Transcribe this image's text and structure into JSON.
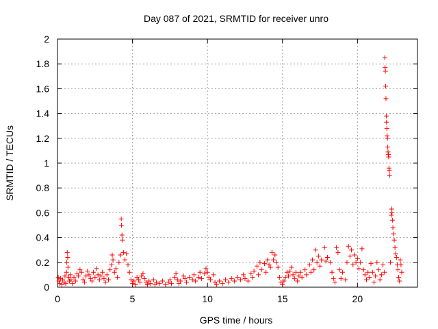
{
  "chart_data": {
    "type": "scatter",
    "title": "Day 087 of 2021, SRMTID for receiver unro",
    "xlabel": "GPS time / hours",
    "ylabel": "SRMTID / TECUs",
    "xlim": [
      0,
      24
    ],
    "ylim": [
      0,
      2
    ],
    "xticks": [
      0,
      5,
      10,
      15,
      20
    ],
    "yticks": [
      0,
      0.2,
      0.4,
      0.6,
      0.8,
      1,
      1.2,
      1.4,
      1.6,
      1.8,
      2
    ],
    "ytick_labels": [
      "0",
      "0.2",
      "0.4",
      "0.6",
      "0.8",
      "1",
      "1.2",
      "1.4",
      "1.6",
      "1.8",
      "2"
    ],
    "grid": true,
    "marker": "+",
    "color": "#ff0000",
    "series": [
      {
        "name": "SRMTID",
        "points": [
          [
            0.05,
            0.08
          ],
          [
            0.1,
            0.05
          ],
          [
            0.15,
            0.03
          ],
          [
            0.2,
            0.07
          ],
          [
            0.3,
            0.02
          ],
          [
            0.35,
            0.06
          ],
          [
            0.45,
            0.04
          ],
          [
            0.5,
            0.09
          ],
          [
            0.55,
            0.03
          ],
          [
            0.6,
            0.12
          ],
          [
            0.62,
            0.2
          ],
          [
            0.65,
            0.28
          ],
          [
            0.68,
            0.24
          ],
          [
            0.7,
            0.16
          ],
          [
            0.75,
            0.08
          ],
          [
            0.8,
            0.05
          ],
          [
            0.85,
            0.1
          ],
          [
            0.9,
            0.06
          ],
          [
            1.0,
            0.03
          ],
          [
            1.1,
            0.08
          ],
          [
            1.2,
            0.05
          ],
          [
            1.3,
            0.11
          ],
          [
            1.4,
            0.09
          ],
          [
            1.5,
            0.14
          ],
          [
            1.6,
            0.12
          ],
          [
            1.7,
            0.06
          ],
          [
            1.8,
            0.04
          ],
          [
            1.9,
            0.09
          ],
          [
            2.0,
            0.13
          ],
          [
            2.1,
            0.1
          ],
          [
            2.2,
            0.07
          ],
          [
            2.3,
            0.05
          ],
          [
            2.4,
            0.12
          ],
          [
            2.5,
            0.08
          ],
          [
            2.6,
            0.15
          ],
          [
            2.7,
            0.1
          ],
          [
            2.8,
            0.06
          ],
          [
            2.9,
            0.09
          ],
          [
            3.0,
            0.12
          ],
          [
            3.1,
            0.07
          ],
          [
            3.2,
            0.04
          ],
          [
            3.3,
            0.1
          ],
          [
            3.4,
            0.06
          ],
          [
            3.5,
            0.14
          ],
          [
            3.6,
            0.18
          ],
          [
            3.65,
            0.26
          ],
          [
            3.7,
            0.22
          ],
          [
            3.8,
            0.12
          ],
          [
            3.9,
            0.15
          ],
          [
            4.0,
            0.08
          ],
          [
            4.1,
            0.2
          ],
          [
            4.2,
            0.26
          ],
          [
            4.25,
            0.55
          ],
          [
            4.27,
            0.5
          ],
          [
            4.3,
            0.42
          ],
          [
            4.32,
            0.38
          ],
          [
            4.4,
            0.28
          ],
          [
            4.5,
            0.22
          ],
          [
            4.6,
            0.27
          ],
          [
            4.7,
            0.18
          ],
          [
            4.8,
            0.12
          ],
          [
            4.9,
            0.06
          ],
          [
            5.0,
            0.03
          ],
          [
            5.1,
            0.05
          ],
          [
            5.2,
            0.02
          ],
          [
            5.3,
            0.08
          ],
          [
            5.4,
            0.06
          ],
          [
            5.5,
            0.04
          ],
          [
            5.6,
            0.09
          ],
          [
            5.7,
            0.11
          ],
          [
            5.8,
            0.07
          ],
          [
            5.9,
            0.04
          ],
          [
            6.0,
            0.02
          ],
          [
            6.1,
            0.05
          ],
          [
            6.2,
            0.03
          ],
          [
            6.4,
            0.06
          ],
          [
            6.5,
            0.02
          ],
          [
            6.6,
            0.04
          ],
          [
            6.8,
            0.03
          ],
          [
            7.0,
            0.05
          ],
          [
            7.2,
            0.02
          ],
          [
            7.4,
            0.04
          ],
          [
            7.5,
            0.06
          ],
          [
            7.6,
            0.03
          ],
          [
            7.8,
            0.08
          ],
          [
            7.9,
            0.11
          ],
          [
            8.0,
            0.06
          ],
          [
            8.1,
            0.03
          ],
          [
            8.2,
            0.05
          ],
          [
            8.4,
            0.09
          ],
          [
            8.5,
            0.07
          ],
          [
            8.6,
            0.04
          ],
          [
            8.8,
            0.08
          ],
          [
            9.0,
            0.06
          ],
          [
            9.1,
            0.1
          ],
          [
            9.2,
            0.05
          ],
          [
            9.4,
            0.08
          ],
          [
            9.5,
            0.12
          ],
          [
            9.6,
            0.07
          ],
          [
            9.8,
            0.11
          ],
          [
            9.9,
            0.15
          ],
          [
            10.0,
            0.12
          ],
          [
            10.1,
            0.08
          ],
          [
            10.2,
            0.06
          ],
          [
            10.4,
            0.1
          ],
          [
            10.5,
            0.04
          ],
          [
            10.6,
            0.02
          ],
          [
            10.8,
            0.05
          ],
          [
            11.0,
            0.03
          ],
          [
            11.2,
            0.06
          ],
          [
            11.4,
            0.04
          ],
          [
            11.6,
            0.07
          ],
          [
            11.8,
            0.05
          ],
          [
            12.0,
            0.08
          ],
          [
            12.2,
            0.06
          ],
          [
            12.4,
            0.1
          ],
          [
            12.5,
            0.07
          ],
          [
            12.7,
            0.05
          ],
          [
            12.9,
            0.11
          ],
          [
            13.0,
            0.08
          ],
          [
            13.1,
            0.13
          ],
          [
            13.3,
            0.17
          ],
          [
            13.4,
            0.1
          ],
          [
            13.5,
            0.2
          ],
          [
            13.6,
            0.14
          ],
          [
            13.8,
            0.19
          ],
          [
            13.9,
            0.12
          ],
          [
            14.0,
            0.22
          ],
          [
            14.1,
            0.18
          ],
          [
            14.2,
            0.16
          ],
          [
            14.3,
            0.28
          ],
          [
            14.4,
            0.22
          ],
          [
            14.5,
            0.26
          ],
          [
            14.6,
            0.2
          ],
          [
            14.7,
            0.16
          ],
          [
            14.8,
            0.08
          ],
          [
            14.9,
            0.04
          ],
          [
            15.0,
            0.02
          ],
          [
            15.1,
            0.05
          ],
          [
            15.2,
            0.08
          ],
          [
            15.3,
            0.12
          ],
          [
            15.4,
            0.09
          ],
          [
            15.5,
            0.13
          ],
          [
            15.6,
            0.16
          ],
          [
            15.7,
            0.1
          ],
          [
            15.8,
            0.07
          ],
          [
            15.9,
            0.12
          ],
          [
            16.0,
            0.05
          ],
          [
            16.1,
            0.09
          ],
          [
            16.2,
            0.12
          ],
          [
            16.3,
            0.08
          ],
          [
            16.5,
            0.14
          ],
          [
            16.6,
            0.1
          ],
          [
            16.8,
            0.18
          ],
          [
            16.9,
            0.12
          ],
          [
            17.0,
            0.22
          ],
          [
            17.1,
            0.14
          ],
          [
            17.2,
            0.3
          ],
          [
            17.3,
            0.2
          ],
          [
            17.4,
            0.25
          ],
          [
            17.5,
            0.17
          ],
          [
            17.6,
            0.22
          ],
          [
            17.8,
            0.32
          ],
          [
            17.9,
            0.21
          ],
          [
            18.0,
            0.24
          ],
          [
            18.2,
            0.2
          ],
          [
            18.3,
            0.12
          ],
          [
            18.4,
            0.07
          ],
          [
            18.5,
            0.04
          ],
          [
            18.6,
            0.32
          ],
          [
            18.7,
            0.28
          ],
          [
            18.8,
            0.14
          ],
          [
            18.9,
            0.07
          ],
          [
            19.0,
            0.12
          ],
          [
            19.2,
            0.06
          ],
          [
            19.3,
            0.2
          ],
          [
            19.4,
            0.33
          ],
          [
            19.5,
            0.25
          ],
          [
            19.6,
            0.3
          ],
          [
            19.7,
            0.18
          ],
          [
            19.8,
            0.26
          ],
          [
            19.9,
            0.2
          ],
          [
            20.0,
            0.23
          ],
          [
            20.1,
            0.15
          ],
          [
            20.2,
            0.2
          ],
          [
            20.3,
            0.31
          ],
          [
            20.4,
            0.14
          ],
          [
            20.5,
            0.1
          ],
          [
            20.6,
            0.06
          ],
          [
            20.7,
            0.12
          ],
          [
            20.8,
            0.08
          ],
          [
            20.9,
            0.19
          ],
          [
            21.0,
            0.12
          ],
          [
            21.1,
            0.04
          ],
          [
            21.2,
            0.09
          ],
          [
            21.3,
            0.2
          ],
          [
            21.4,
            0.14
          ],
          [
            21.5,
            0.06
          ],
          [
            21.6,
            0.1
          ],
          [
            21.7,
            0.18
          ],
          [
            21.8,
            0.12
          ],
          [
            21.82,
            1.85
          ],
          [
            21.84,
            1.77
          ],
          [
            21.86,
            1.74
          ],
          [
            21.88,
            1.62
          ],
          [
            21.9,
            1.52
          ],
          [
            21.92,
            1.38
          ],
          [
            21.94,
            1.33
          ],
          [
            21.96,
            1.28
          ],
          [
            21.98,
            1.22
          ],
          [
            22.0,
            1.2
          ],
          [
            22.02,
            1.13
          ],
          [
            22.04,
            1.09
          ],
          [
            22.06,
            1.07
          ],
          [
            22.08,
            1.05
          ],
          [
            22.1,
            0.96
          ],
          [
            22.12,
            0.94
          ],
          [
            22.14,
            0.9
          ],
          [
            22.2,
            0.2
          ],
          [
            22.25,
            0.58
          ],
          [
            22.28,
            0.63
          ],
          [
            22.3,
            0.6
          ],
          [
            22.33,
            0.54
          ],
          [
            22.36,
            0.48
          ],
          [
            22.4,
            0.43
          ],
          [
            22.45,
            0.38
          ],
          [
            22.5,
            0.32
          ],
          [
            22.55,
            0.27
          ],
          [
            22.6,
            0.24
          ],
          [
            22.65,
            0.18
          ],
          [
            22.7,
            0.14
          ],
          [
            22.75,
            0.08
          ],
          [
            22.8,
            0.05
          ],
          [
            22.85,
            0.22
          ],
          [
            22.9,
            0.18
          ],
          [
            22.95,
            0.12
          ]
        ]
      }
    ]
  }
}
